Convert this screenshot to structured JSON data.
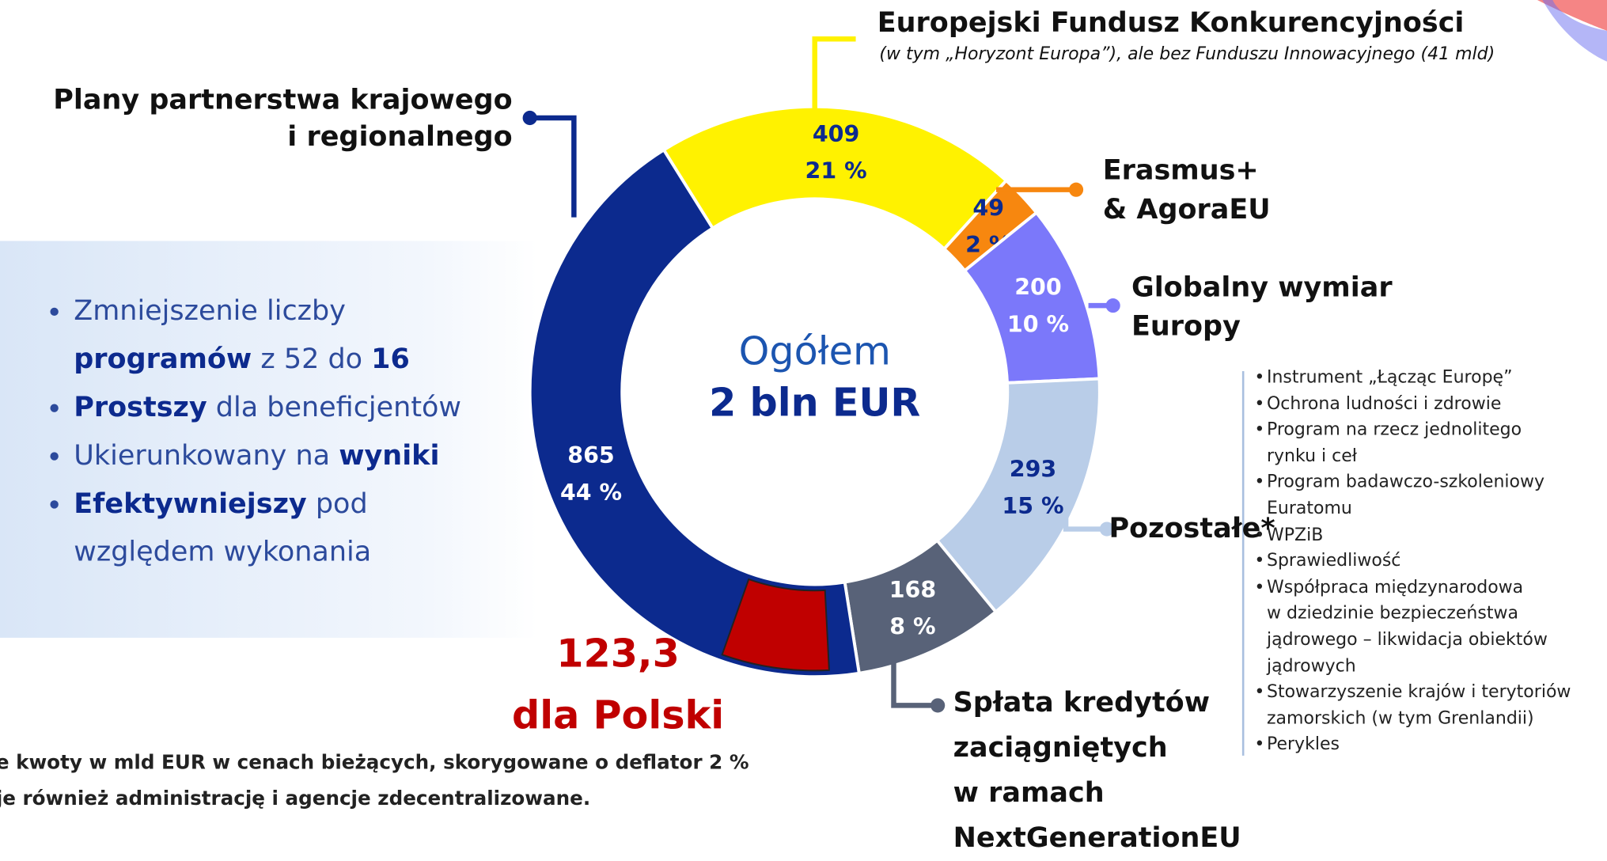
{
  "chart_data": {
    "type": "donut",
    "categories": [
      "Europejski Fundusz Konkurencyjności",
      "Erasmus+\n& AgoraEU",
      "Globalny wymiar\nEuropy",
      "Pozostałe*",
      "Spłata kredytów\nzaciągniętych\nw ramach\nNextGenerationEU",
      "Plany partnerstwa krajowego\ni regionalnego"
    ],
    "values": [
      409,
      49,
      200,
      293,
      168,
      865
    ],
    "shares": [
      21,
      2,
      10,
      15,
      8,
      44
    ],
    "share_labels": [
      "21 %",
      "2 %",
      "10 %",
      "15 %",
      "8 %",
      "44 %"
    ],
    "colors": [
      "#fff200",
      "#f7870f",
      "#7b78fa",
      "#b9cde8",
      "#586278",
      "#0c2a8e"
    ],
    "fund_note": "(w tym „Horyzont Europa”), ale bez Funduszu Innowacyjnego (41 mld)",
    "center_title": "Ogółem",
    "center_total": "2 bln EUR",
    "highlight": {
      "value": 123.3,
      "label": "123,3",
      "text": "dla Polski",
      "color": "#c00000"
    },
    "bullets": [
      [
        {
          "text": "Zmniejszenie liczby\n",
          "bold": false
        },
        {
          "text": "programów",
          "bold": true
        },
        {
          "text": " z 52 do ",
          "bold": false
        },
        {
          "text": "16",
          "bold": true
        }
      ],
      [
        {
          "text": "Prostszy",
          "bold": true
        },
        {
          "text": " dla beneficjentów",
          "bold": false
        }
      ],
      [
        {
          "text": "Ukierunkowany na ",
          "bold": false
        },
        {
          "text": "wyniki",
          "bold": true
        }
      ],
      [
        {
          "text": "Efektywniejszy",
          "bold": true
        },
        {
          "text": " pod\nwzględem wykonania",
          "bold": false
        }
      ]
    ],
    "other_items": [
      "Instrument „Łącząc Europę”",
      "Ochrona ludności i zdrowie",
      "Program na rzecz jednolitego\nrynku i ceł",
      "Program badawczo-szkoleniowy\nEuratomu",
      "WPZiB",
      "Sprawiedliwość",
      "Współpraca międzynarodowa\nw dziedzinie bezpieczeństwa\njądrowego – likwidacja obiektów\njądrowych",
      "Stowarzyszenie krajów i terytoriów\nzamorskich (w tym Grenlandii)",
      "Perykles"
    ],
    "notes": [
      "e kwoty w mld EUR w cenach bieżących, skorygowane o deflator 2 %",
      "je również administrację i agencje zdecentralizowane."
    ]
  }
}
